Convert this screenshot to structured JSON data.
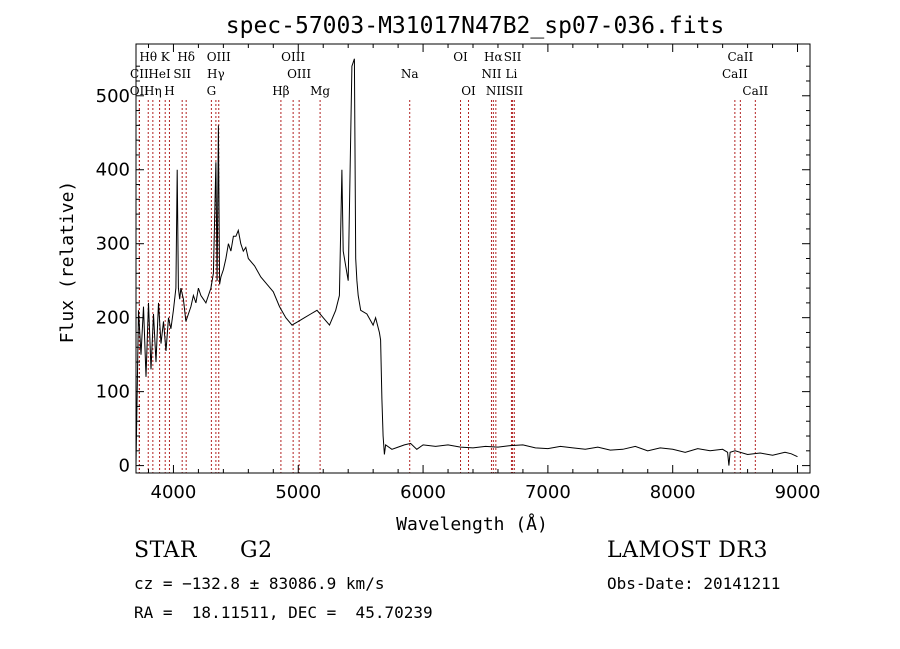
{
  "chart_data": {
    "type": "line",
    "title": "spec-57003-M31017N47B2_sp07-036.fits",
    "xlabel": "Wavelength (Å)",
    "ylabel": "Flux (relative)",
    "xlim": [
      3700,
      9100
    ],
    "ylim": [
      -10,
      570
    ],
    "xticks": [
      4000,
      5000,
      6000,
      7000,
      8000,
      9000
    ],
    "yticks": [
      0,
      100,
      200,
      300,
      400,
      500
    ],
    "grid": false,
    "series": [
      {
        "x": [
          3700,
          3720,
          3740,
          3760,
          3780,
          3800,
          3820,
          3840,
          3860,
          3880,
          3900,
          3920,
          3940,
          3960,
          3980,
          4000,
          4020,
          4030,
          4040,
          4050,
          4060,
          4080,
          4100,
          4120,
          4140,
          4160,
          4180,
          4200,
          4220,
          4240,
          4260,
          4280,
          4300,
          4320,
          4340,
          4350,
          4360,
          4370,
          4380,
          4400,
          4420,
          4440,
          4460,
          4480,
          4500,
          4520,
          4540,
          4560,
          4580,
          4600,
          4650,
          4700,
          4750,
          4800,
          4850,
          4900,
          4950,
          5000,
          5050,
          5100,
          5150,
          5200,
          5250,
          5300,
          5330,
          5350,
          5360,
          5380,
          5400,
          5430,
          5450,
          5460,
          5470,
          5480,
          5500,
          5550,
          5600,
          5620,
          5650,
          5660,
          5670,
          5680,
          5690,
          5700,
          5750,
          5800,
          5850,
          5900,
          5950,
          6000,
          6100,
          6200,
          6300,
          6400,
          6500,
          6600,
          6700,
          6800,
          6900,
          7000,
          7100,
          7200,
          7300,
          7400,
          7500,
          7600,
          7700,
          7800,
          7900,
          8000,
          8100,
          8200,
          8300,
          8400,
          8440,
          8450,
          8460,
          8500,
          8600,
          8700,
          8800,
          8900,
          8950,
          9000
        ],
        "y": [
          0,
          210,
          150,
          215,
          120,
          220,
          130,
          205,
          140,
          220,
          165,
          195,
          155,
          200,
          185,
          210,
          240,
          400,
          240,
          225,
          240,
          225,
          195,
          205,
          215,
          230,
          220,
          240,
          230,
          225,
          220,
          230,
          240,
          260,
          410,
          250,
          460,
          245,
          255,
          265,
          280,
          300,
          290,
          310,
          310,
          318,
          300,
          290,
          295,
          280,
          270,
          255,
          245,
          235,
          215,
          200,
          190,
          195,
          200,
          205,
          210,
          200,
          190,
          210,
          230,
          400,
          290,
          270,
          250,
          540,
          550,
          280,
          250,
          230,
          210,
          205,
          190,
          200,
          180,
          170,
          90,
          40,
          15,
          28,
          22,
          25,
          28,
          30,
          22,
          28,
          26,
          28,
          25,
          24,
          26,
          25,
          27,
          28,
          24,
          23,
          26,
          24,
          22,
          25,
          21,
          22,
          26,
          20,
          24,
          22,
          18,
          23,
          20,
          22,
          18,
          0,
          18,
          20,
          15,
          17,
          14,
          18,
          16,
          12
        ]
      }
    ],
    "lines": [
      {
        "label": "Hθ",
        "x": 3798,
        "row": 0
      },
      {
        "label": "K",
        "x": 3934,
        "row": 0
      },
      {
        "label": "Hδ",
        "x": 4102,
        "row": 0
      },
      {
        "label": "OIII",
        "x": 4363,
        "row": 0
      },
      {
        "label": "OIII",
        "x": 4959,
        "row": 0
      },
      {
        "label": "OI",
        "x": 6300,
        "row": 0
      },
      {
        "label": "Hα",
        "x": 6563,
        "row": 0
      },
      {
        "label": "SII",
        "x": 6717,
        "row": 0
      },
      {
        "label": "CaII",
        "x": 8542,
        "row": 0
      },
      {
        "label": "CII",
        "x": 3727,
        "row": 1
      },
      {
        "label": "HeI",
        "x": 3889,
        "row": 1
      },
      {
        "label": "SII",
        "x": 4070,
        "row": 1
      },
      {
        "label": "Hγ",
        "x": 4340,
        "row": 1
      },
      {
        "label": "OIII",
        "x": 5007,
        "row": 1
      },
      {
        "label": "NII",
        "x": 6548,
        "row": 1
      },
      {
        "label": "Li",
        "x": 6708,
        "row": 1
      },
      {
        "label": "CaII",
        "x": 8498,
        "row": 1
      },
      {
        "label": "OII",
        "x": 3727,
        "row": 2
      },
      {
        "label": "Hη",
        "x": 3835,
        "row": 2
      },
      {
        "label": "H",
        "x": 3968,
        "row": 2
      },
      {
        "label": "G",
        "x": 4304,
        "row": 2
      },
      {
        "label": "Hβ",
        "x": 4861,
        "row": 2
      },
      {
        "label": "Mg",
        "x": 5175,
        "row": 2
      },
      {
        "label": "Na",
        "x": 5893,
        "row": 1
      },
      {
        "label": "OI",
        "x": 6364,
        "row": 2
      },
      {
        "label": "NII",
        "x": 6583,
        "row": 2
      },
      {
        "label": "SII",
        "x": 6731,
        "row": 2
      },
      {
        "label": "CaII",
        "x": 8662,
        "row": 2
      }
    ]
  },
  "info": {
    "object_class": "STAR",
    "subclass": "G2",
    "survey": "LAMOST DR3",
    "cz": "cz = −132.8 ± 83086.9 km/s",
    "obs_date": "Obs-Date: 20141211",
    "coords": "RA =  18.11511, DEC =  45.70239"
  }
}
